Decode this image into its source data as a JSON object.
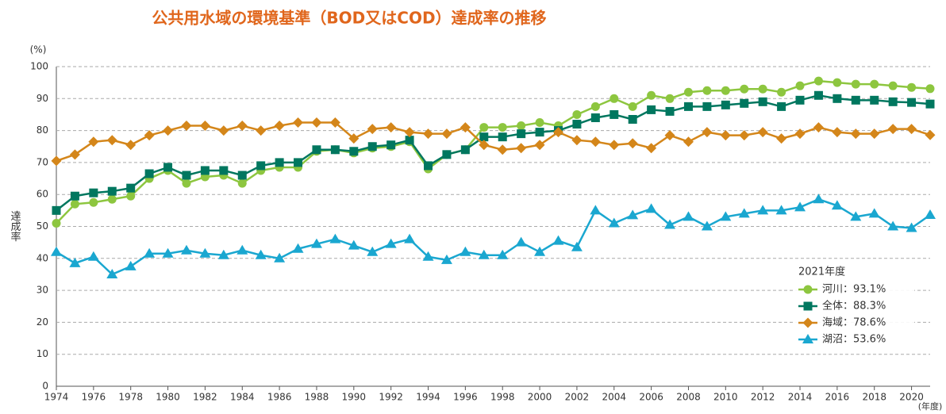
{
  "chart_data": {
    "type": "line",
    "title": "公共用水域の環境基準（BOD又はCOD）達成率の推移",
    "y_unit": "(%)",
    "y_label": "達成率",
    "x_unit": "(年度)",
    "legend_title": "2021年度",
    "legend": "lower right",
    "grid": true,
    "x": [
      1974,
      1975,
      1976,
      1977,
      1978,
      1979,
      1980,
      1981,
      1982,
      1983,
      1984,
      1985,
      1986,
      1987,
      1988,
      1989,
      1990,
      1991,
      1992,
      1993,
      1994,
      1995,
      1996,
      1997,
      1998,
      1999,
      2000,
      2001,
      2002,
      2003,
      2004,
      2005,
      2006,
      2007,
      2008,
      2009,
      2010,
      2011,
      2012,
      2013,
      2014,
      2015,
      2016,
      2017,
      2018,
      2019,
      2020,
      2021
    ],
    "xlim": [
      1974,
      2021
    ],
    "xticks": [
      1974,
      1976,
      1978,
      1980,
      1982,
      1984,
      1986,
      1988,
      1990,
      1992,
      1994,
      1996,
      1998,
      2000,
      2002,
      2004,
      2006,
      2008,
      2010,
      2012,
      2014,
      2016,
      2018,
      2020
    ],
    "ylim": [
      0,
      100
    ],
    "yticks": [
      0,
      10,
      20,
      30,
      40,
      50,
      60,
      70,
      80,
      90,
      100
    ],
    "series": [
      {
        "name": "河川：93.1%",
        "color": "#8dc63f",
        "marker": "circle",
        "values": [
          51,
          57,
          57.5,
          58.5,
          59.5,
          65,
          67.5,
          63.5,
          65.5,
          66,
          63.5,
          67.5,
          68.5,
          68.5,
          73.5,
          74,
          73,
          74.5,
          75,
          76.5,
          68,
          72.5,
          74,
          81,
          81,
          81.5,
          82.5,
          81.5,
          85,
          87.5,
          90,
          87.5,
          91,
          90,
          92,
          92.5,
          92.5,
          93,
          93,
          92,
          94,
          95.5,
          95,
          94.5,
          94.5,
          94,
          93.5,
          93.1
        ]
      },
      {
        "name": "全体：88.3%",
        "color": "#00775f",
        "marker": "square",
        "values": [
          55,
          59.5,
          60.5,
          61,
          62,
          66.5,
          68.5,
          66,
          67.5,
          67.5,
          66,
          69,
          70,
          70,
          74,
          74,
          73.5,
          75,
          75.5,
          77,
          69,
          72.5,
          74,
          78,
          78,
          79,
          79.5,
          80,
          82,
          84,
          85,
          83.5,
          86.5,
          86,
          87.5,
          87.5,
          88,
          88.5,
          89,
          87.5,
          89.5,
          91,
          90,
          89.5,
          89.5,
          89,
          88.8,
          88.3
        ]
      },
      {
        "name": "海域：78.6%",
        "color": "#d4861a",
        "marker": "diamond",
        "values": [
          70.5,
          72.5,
          76.5,
          77,
          75.5,
          78.5,
          80,
          81.5,
          81.5,
          80,
          81.5,
          80,
          81.5,
          82.5,
          82.5,
          82.5,
          77.5,
          80.5,
          81,
          79.5,
          79,
          79,
          81,
          75.5,
          74,
          74.5,
          75.5,
          79.5,
          77,
          76.5,
          75.5,
          76,
          74.5,
          78.5,
          76.5,
          79.5,
          78.5,
          78.5,
          79.5,
          77.5,
          79,
          81,
          79.5,
          79,
          79,
          80.5,
          80.5,
          78.6
        ]
      },
      {
        "name": "湖沼：53.6%",
        "color": "#1aa7d0",
        "marker": "triangle",
        "values": [
          42,
          38.5,
          40.5,
          35,
          37.5,
          41.5,
          41.5,
          42.5,
          41.5,
          41,
          42.5,
          41,
          40,
          43,
          44.5,
          46,
          44,
          42,
          44.5,
          46,
          40.5,
          39.5,
          42,
          41,
          41,
          45,
          42,
          45.5,
          43.5,
          55,
          51,
          53.5,
          55.5,
          50.5,
          53,
          50,
          53,
          54,
          55,
          55,
          56,
          58.5,
          56.5,
          53,
          54,
          50,
          49.5,
          53.6
        ]
      }
    ]
  }
}
